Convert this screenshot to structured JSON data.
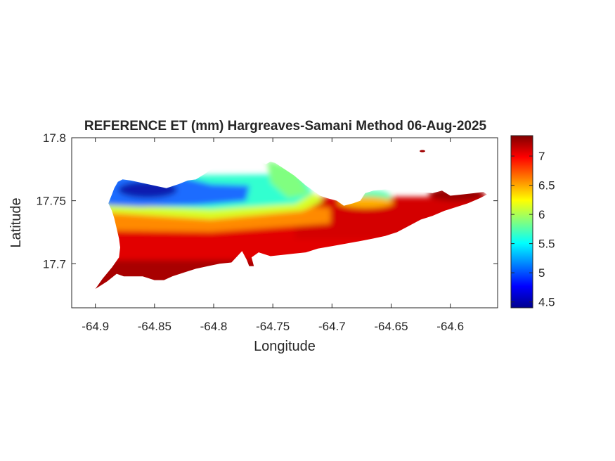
{
  "chart_data": {
    "type": "heatmap",
    "title": "REFERENCE ET (mm) Hargreaves-Samani Method  06-Aug-2025",
    "xlabel": "Longitude",
    "ylabel": "Latitude",
    "xlim": [
      -64.92,
      -64.56
    ],
    "ylim": [
      17.665,
      17.8
    ],
    "xticks": [
      -64.9,
      -64.85,
      -64.8,
      -64.75,
      -64.7,
      -64.65,
      -64.6
    ],
    "xtick_labels": [
      "-64.9",
      "-64.85",
      "-64.8",
      "-64.75",
      "-64.7",
      "-64.65",
      "-64.6"
    ],
    "yticks": [
      17.7,
      17.75,
      17.8
    ],
    "ytick_labels": [
      "17.7",
      "17.75",
      "17.8"
    ],
    "colormap": "jet",
    "colorbar": {
      "range": [
        4.4,
        7.35
      ],
      "ticks": [
        4.5,
        5,
        5.5,
        6,
        6.5,
        7
      ],
      "tick_labels": [
        "4.5",
        "5",
        "5.5",
        "6",
        "6.5",
        "7"
      ],
      "location": "right"
    },
    "grid": false,
    "island_outline": [
      [
        -64.9,
        17.68
      ],
      [
        -64.89,
        17.686
      ],
      [
        -64.882,
        17.692
      ],
      [
        -64.876,
        17.69
      ],
      [
        -64.868,
        17.69
      ],
      [
        -64.86,
        17.69
      ],
      [
        -64.85,
        17.687
      ],
      [
        -64.842,
        17.687
      ],
      [
        -64.835,
        17.69
      ],
      [
        -64.825,
        17.693
      ],
      [
        -64.815,
        17.696
      ],
      [
        -64.805,
        17.698
      ],
      [
        -64.795,
        17.7
      ],
      [
        -64.785,
        17.701
      ],
      [
        -64.78,
        17.706
      ],
      [
        -64.776,
        17.71
      ],
      [
        -64.772,
        17.703
      ],
      [
        -64.77,
        17.698
      ],
      [
        -64.766,
        17.698
      ],
      [
        -64.768,
        17.705
      ],
      [
        -64.762,
        17.709
      ],
      [
        -64.752,
        17.706
      ],
      [
        -64.742,
        17.707
      ],
      [
        -64.732,
        17.708
      ],
      [
        -64.722,
        17.709
      ],
      [
        -64.712,
        17.712
      ],
      [
        -64.7,
        17.714
      ],
      [
        -64.688,
        17.716
      ],
      [
        -64.676,
        17.718
      ],
      [
        -64.665,
        17.72
      ],
      [
        -64.655,
        17.722
      ],
      [
        -64.645,
        17.725
      ],
      [
        -64.635,
        17.73
      ],
      [
        -64.625,
        17.735
      ],
      [
        -64.615,
        17.738
      ],
      [
        -64.605,
        17.742
      ],
      [
        -64.595,
        17.745
      ],
      [
        -64.585,
        17.748
      ],
      [
        -64.575,
        17.752
      ],
      [
        -64.569,
        17.755
      ],
      [
        -64.572,
        17.757
      ],
      [
        -64.58,
        17.756
      ],
      [
        -64.59,
        17.755
      ],
      [
        -64.6,
        17.754
      ],
      [
        -64.607,
        17.758
      ],
      [
        -64.615,
        17.756
      ],
      [
        -64.625,
        17.757
      ],
      [
        -64.635,
        17.758
      ],
      [
        -64.645,
        17.758
      ],
      [
        -64.655,
        17.759
      ],
      [
        -64.665,
        17.758
      ],
      [
        -64.672,
        17.756
      ],
      [
        -64.676,
        17.75
      ],
      [
        -64.682,
        17.748
      ],
      [
        -64.69,
        17.746
      ],
      [
        -64.696,
        17.75
      ],
      [
        -64.704,
        17.752
      ],
      [
        -64.71,
        17.754
      ],
      [
        -64.713,
        17.756
      ],
      [
        -64.716,
        17.758
      ],
      [
        -64.722,
        17.762
      ],
      [
        -64.727,
        17.766
      ],
      [
        -64.732,
        17.77
      ],
      [
        -64.74,
        17.775
      ],
      [
        -64.748,
        17.78
      ],
      [
        -64.752,
        17.781
      ],
      [
        -64.756,
        17.779
      ],
      [
        -64.76,
        17.781
      ],
      [
        -64.766,
        17.783
      ],
      [
        -64.77,
        17.784
      ],
      [
        -64.775,
        17.782
      ],
      [
        -64.782,
        17.783
      ],
      [
        -64.788,
        17.78
      ],
      [
        -64.795,
        17.778
      ],
      [
        -64.802,
        17.775
      ],
      [
        -64.808,
        17.771
      ],
      [
        -64.815,
        17.767
      ],
      [
        -64.822,
        17.766
      ],
      [
        -64.83,
        17.763
      ],
      [
        -64.84,
        17.76
      ],
      [
        -64.85,
        17.762
      ],
      [
        -64.86,
        17.764
      ],
      [
        -64.87,
        17.766
      ],
      [
        -64.877,
        17.767
      ],
      [
        -64.881,
        17.765
      ],
      [
        -64.884,
        17.76
      ],
      [
        -64.886,
        17.755
      ],
      [
        -64.889,
        17.748
      ],
      [
        -64.886,
        17.742
      ],
      [
        -64.884,
        17.736
      ],
      [
        -64.882,
        17.728
      ],
      [
        -64.88,
        17.72
      ],
      [
        -64.879,
        17.713
      ],
      [
        -64.88,
        17.705
      ],
      [
        -64.886,
        17.697
      ],
      [
        -64.894,
        17.688
      ],
      [
        -64.9,
        17.68
      ]
    ],
    "zones": [
      {
        "name": "dark-red south coast",
        "value": 7.2
      },
      {
        "name": "red southern plain",
        "value": 6.9
      },
      {
        "name": "orange belt",
        "value": 6.5
      },
      {
        "name": "yellow-green band",
        "value": 6.0
      },
      {
        "name": "cyan north slope",
        "value": 5.5
      },
      {
        "name": "blue northwest peaks",
        "value": 5.0
      },
      {
        "name": "deep-blue minimum",
        "value": 4.6
      }
    ]
  }
}
